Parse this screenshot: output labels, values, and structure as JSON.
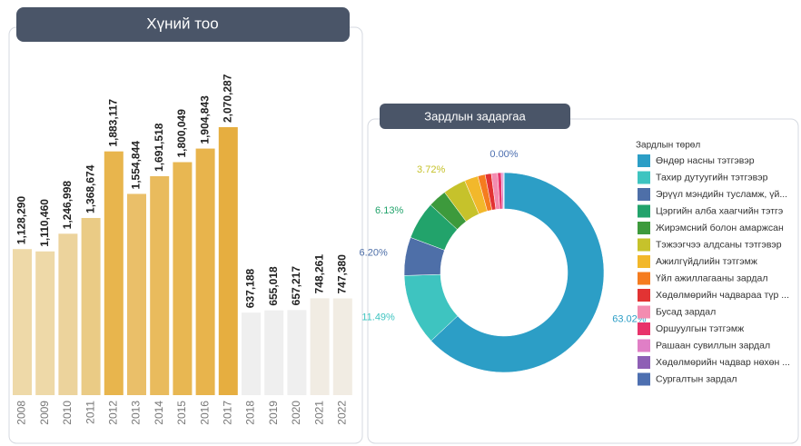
{
  "chart_data": [
    {
      "type": "bar",
      "title": "Хүний тоо",
      "categories": [
        "2008",
        "2009",
        "2010",
        "2011",
        "2012",
        "2013",
        "2014",
        "2015",
        "2016",
        "2017",
        "2018",
        "2019",
        "2020",
        "2021",
        "2022"
      ],
      "values": [
        1128290,
        1110460,
        1246998,
        1368674,
        1883117,
        1554844,
        1691518,
        1800049,
        1904843,
        2070287,
        637188,
        655018,
        657217,
        748261,
        747380
      ],
      "value_labels": [
        "1,128,290",
        "1,110,460",
        "1,246,998",
        "1,368,674",
        "1,883,117",
        "1,554,844",
        "1,691,518",
        "1,800,049",
        "1,904,843",
        "2,070,287",
        "637,188",
        "655,018",
        "657,217",
        "748,261",
        "747,380"
      ],
      "colors": [
        "#eed9a8",
        "#eed9a8",
        "#ecd39c",
        "#eacb85",
        "#e8b54d",
        "#eabf69",
        "#e9bb5d",
        "#e8b752",
        "#e8b44c",
        "#e6ae40",
        "#efefef",
        "#efefef",
        "#efefef",
        "#f1ece3",
        "#f1ece3"
      ]
    },
    {
      "type": "pie",
      "title": "Зардлын задаргаа",
      "legend_title": "Зардлын төрөл",
      "categories": [
        "Өндөр насны тэтгэвэр",
        "Тахир дутуугийн тэтгэвэр",
        "Эрүүл мэндийн тусламж, үй...",
        "Цэргийн алба хаагчийн тэтгэ",
        "Жирэмсний болон амаржсан",
        "Тэжээгчээ алдсаны тэтгэвэр",
        "Ажилгүйдлийн тэтгэмж",
        "Үйл ажиллагааны зардал",
        "Хөдөлмөрийн чадвараа түр ...",
        "Бусад зардал",
        "Оршуулгын тэтгэмж",
        "Рашаан сувиллын зардал",
        "Хөдөлмөрийн чадвар нөхөн ...",
        "Сургалтын зардал"
      ],
      "values": [
        63.02,
        11.49,
        6.2,
        6.13,
        3.0,
        3.72,
        2.2,
        1.2,
        1.0,
        1.0,
        0.6,
        0.3,
        0.14,
        0.0
      ],
      "value_labels": [
        "63.02%",
        "11.49%",
        "6.20%",
        "6.13%",
        null,
        "3.72%",
        null,
        null,
        null,
        null,
        null,
        null,
        null,
        "0.00%"
      ],
      "colors": [
        "#2c9ec6",
        "#3ec4c0",
        "#4e6fa8",
        "#22a36b",
        "#3d9a3c",
        "#c6c22b",
        "#f2b82b",
        "#f57c1f",
        "#e23333",
        "#f38cb0",
        "#e8336b",
        "#e07fc6",
        "#8e5fb5",
        "#4d6fb0"
      ]
    }
  ]
}
